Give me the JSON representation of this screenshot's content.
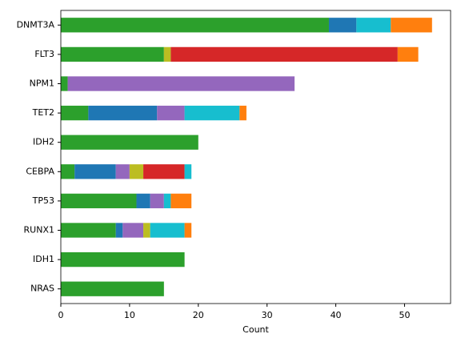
{
  "chart_data": {
    "type": "barh_stacked",
    "xlabel": "Count",
    "categories": [
      "DNMT3A",
      "FLT3",
      "NPM1",
      "TET2",
      "IDH2",
      "CEBPA",
      "TP53",
      "RUNX1",
      "IDH1",
      "NRAS"
    ],
    "series": [
      {
        "color": "#2ca02c",
        "values": [
          39,
          15,
          1,
          4,
          20,
          2,
          11,
          8,
          18,
          15
        ]
      },
      {
        "color": "#1f77b4",
        "values": [
          4,
          0,
          0,
          10,
          0,
          6,
          2,
          1,
          0,
          0
        ]
      },
      {
        "color": "#9467bd",
        "values": [
          0,
          0,
          33,
          4,
          0,
          2,
          2,
          3,
          0,
          0
        ]
      },
      {
        "color": "#bcbd22",
        "values": [
          0,
          1,
          0,
          0,
          0,
          2,
          0,
          1,
          0,
          0
        ]
      },
      {
        "color": "#d62728",
        "values": [
          0,
          33,
          0,
          0,
          0,
          6,
          0,
          0,
          0,
          0
        ]
      },
      {
        "color": "#17becf",
        "values": [
          5,
          0,
          0,
          8,
          0,
          1,
          1,
          5,
          0,
          0
        ]
      },
      {
        "color": "#ff7f0e",
        "values": [
          6,
          3,
          0,
          1,
          0,
          0,
          3,
          1,
          0,
          0
        ]
      }
    ],
    "xlim": [
      0,
      56.7
    ],
    "xticks": [
      0,
      10,
      20,
      30,
      40,
      50
    ]
  }
}
